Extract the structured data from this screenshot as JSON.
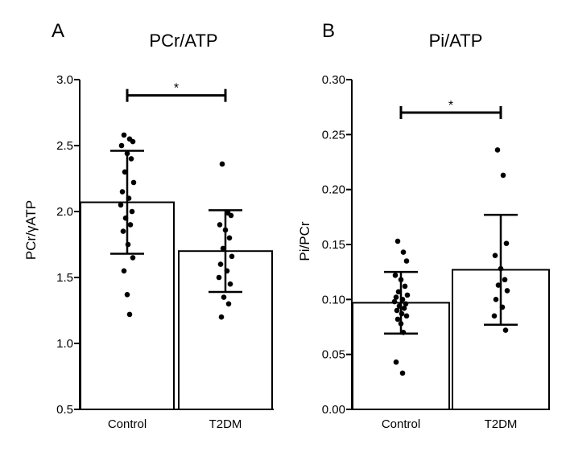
{
  "chart_data": [
    {
      "type": "bar",
      "panel_label": "A",
      "title": "PCr/ATP",
      "xlabel": "",
      "ylabel": "PCr/γATP",
      "ylim": [
        0.5,
        3.0
      ],
      "y_ticks": [
        "0.5",
        "1.0",
        "1.5",
        "2.0",
        "2.5",
        "3.0"
      ],
      "y_tick_values": [
        0.5,
        1.0,
        1.5,
        2.0,
        2.5,
        3.0
      ],
      "categories": [
        "Control",
        "T2DM"
      ],
      "values": [
        2.07,
        1.7
      ],
      "error": [
        0.39,
        0.31
      ],
      "points": [
        [
          2.58,
          2.55,
          2.53,
          2.5,
          2.44,
          2.4,
          2.3,
          2.22,
          2.15,
          2.1,
          2.05,
          2.0,
          1.95,
          1.9,
          1.85,
          1.75,
          1.65,
          1.55,
          1.37,
          1.22
        ],
        [
          2.36,
          1.99,
          1.97,
          1.9,
          1.86,
          1.8,
          1.72,
          1.66,
          1.6,
          1.55,
          1.5,
          1.45,
          1.35,
          1.3,
          1.2
        ]
      ],
      "significance": {
        "between": [
          "Control",
          "T2DM"
        ],
        "y": 2.88,
        "label": "*"
      }
    },
    {
      "type": "bar",
      "panel_label": "B",
      "title": "Pi/ATP",
      "xlabel": "",
      "ylabel": "Pi/PCr",
      "ylim": [
        0.0,
        0.3
      ],
      "y_ticks": [
        "0.00",
        "0.05",
        "0.10",
        "0.15",
        "0.20",
        "0.25",
        "0.30"
      ],
      "y_tick_values": [
        0.0,
        0.05,
        0.1,
        0.15,
        0.2,
        0.25,
        0.3
      ],
      "categories": [
        "Control",
        "T2DM"
      ],
      "values": [
        0.097,
        0.127
      ],
      "error": [
        0.028,
        0.05
      ],
      "points": [
        [
          0.153,
          0.143,
          0.135,
          0.122,
          0.118,
          0.112,
          0.107,
          0.104,
          0.102,
          0.1,
          0.098,
          0.096,
          0.094,
          0.092,
          0.09,
          0.087,
          0.085,
          0.082,
          0.078,
          0.07,
          0.043,
          0.033
        ],
        [
          0.236,
          0.213,
          0.151,
          0.14,
          0.128,
          0.118,
          0.113,
          0.108,
          0.1,
          0.093,
          0.085,
          0.072
        ]
      ],
      "significance": {
        "between": [
          "Control",
          "T2DM"
        ],
        "y": 0.27,
        "label": "*"
      }
    }
  ]
}
